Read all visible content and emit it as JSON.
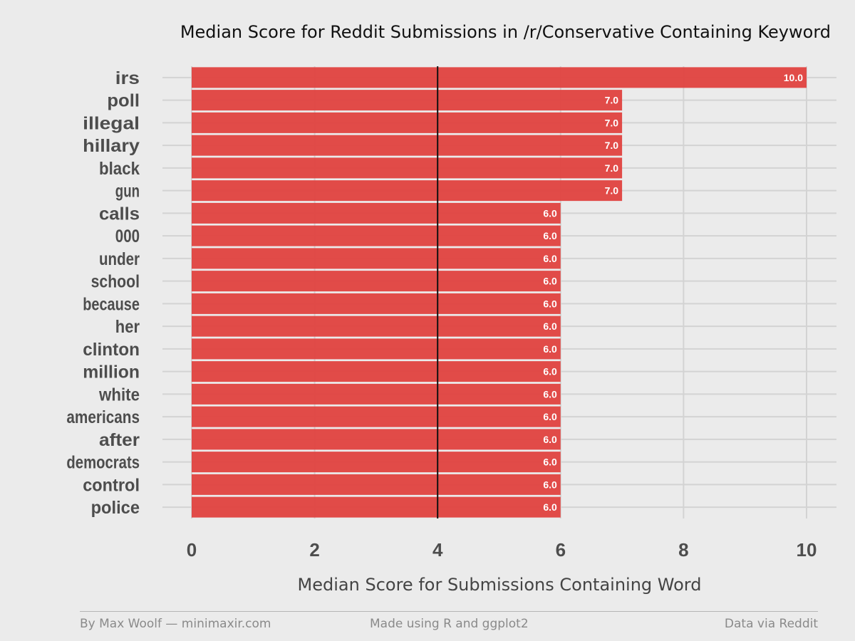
{
  "chart_data": {
    "type": "bar",
    "orientation": "horizontal",
    "title": "Median Score for Reddit Submissions in /r/Conservative Containing Keyword",
    "xlabel": "Median Score for Submissions Containing Word",
    "ylabel": "",
    "xlim": [
      0,
      10
    ],
    "xticks": [
      "0",
      "2",
      "4",
      "6",
      "8",
      "10"
    ],
    "xtick_values": [
      0,
      2,
      4,
      6,
      8,
      10
    ],
    "reference_line": 4,
    "grid": true,
    "bar_color": "#e0423f",
    "categories": [
      "irs",
      "poll",
      "illegal",
      "hillary",
      "black",
      "gun",
      "calls",
      "000",
      "under",
      "school",
      "because",
      "her",
      "clinton",
      "million",
      "white",
      "americans",
      "after",
      "democrats",
      "control",
      "police"
    ],
    "values": [
      10,
      7,
      7,
      7,
      7,
      7,
      6,
      6,
      6,
      6,
      6,
      6,
      6,
      6,
      6,
      6,
      6,
      6,
      6,
      6
    ],
    "data_labels": [
      "10.0",
      "7.0",
      "7.0",
      "7.0",
      "7.0",
      "7.0",
      "6.0",
      "6.0",
      "6.0",
      "6.0",
      "6.0",
      "6.0",
      "6.0",
      "6.0",
      "6.0",
      "6.0",
      "6.0",
      "6.0",
      "6.0",
      "6.0"
    ]
  },
  "footer": {
    "left": "By Max Woolf — minimaxir.com",
    "center": "Made using R and ggplot2",
    "right": "Data via Reddit"
  }
}
